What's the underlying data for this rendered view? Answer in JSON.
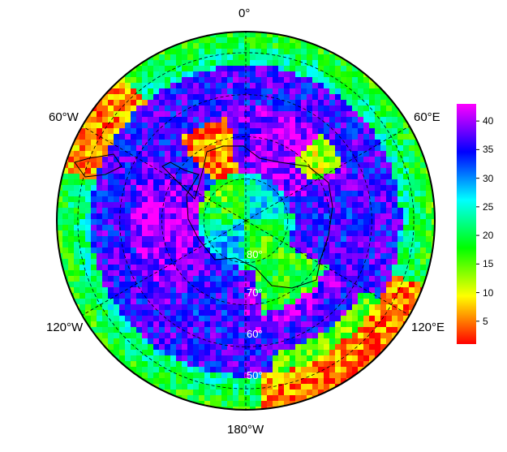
{
  "chart_data": {
    "type": "heatmap",
    "projection": "south-polar-stereographic",
    "longitude_labels": {
      "top": "0°",
      "upper_left": "60°W",
      "upper_right": "60°E",
      "lower_left": "120°W",
      "lower_right": "120°E",
      "bottom": "180°W"
    },
    "latitude_labels": [
      "80°",
      "70°",
      "60°",
      "50°"
    ],
    "latitude_circles": [
      80,
      70,
      60,
      50
    ],
    "colorbar": {
      "min": 1,
      "max": 43,
      "ticks": [
        "5",
        "10",
        "15",
        "20",
        "25",
        "30",
        "35",
        "40"
      ],
      "colors": [
        "#ff0000",
        "#ff8000",
        "#ffff00",
        "#80ff00",
        "#00ff00",
        "#00ff80",
        "#00ffff",
        "#0080ff",
        "#0000ff",
        "#8000ff",
        "#ff00ff"
      ]
    },
    "grid": true
  }
}
